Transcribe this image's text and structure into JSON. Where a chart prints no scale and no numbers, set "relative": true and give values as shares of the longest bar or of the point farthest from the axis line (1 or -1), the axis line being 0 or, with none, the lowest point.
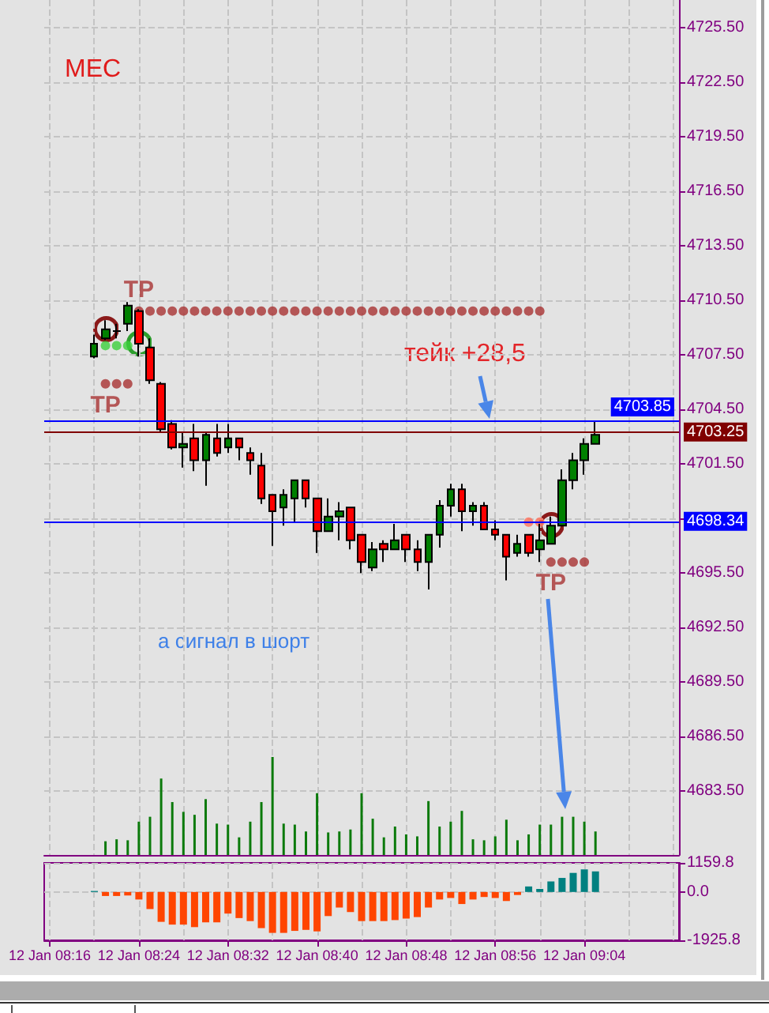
{
  "chart_data": [
    {
      "type": "candlestick",
      "title": "MEC",
      "categories": [
        null,
        null,
        null,
        null,
        null,
        null,
        null,
        null,
        null,
        null,
        null,
        null,
        null,
        null,
        null,
        null,
        null,
        null,
        null,
        null,
        null,
        null,
        null,
        null,
        null,
        null,
        null,
        null,
        null,
        null,
        null,
        null,
        null,
        null,
        null,
        null,
        null,
        null,
        null,
        null,
        null,
        null,
        null,
        null,
        null,
        null,
        null,
        null,
        null,
        null,
        null,
        null,
        null,
        null,
        null,
        null,
        null
      ],
      "ohlc": [
        null,
        null,
        null,
        null,
        [
          4707.4,
          4708.6,
          4707.3,
          4708.1
        ],
        [
          4708.4,
          4709.4,
          4708.3,
          4708.9
        ],
        [
          4708.8,
          4709.2,
          4708.4,
          4708.8
        ],
        [
          4709.2,
          4710.4,
          4708.8,
          4710.2
        ],
        [
          4709.9,
          4710.0,
          4707.4,
          4708.1
        ],
        [
          4707.9,
          4708.4,
          4705.9,
          4706.1
        ],
        [
          4705.9,
          4706.0,
          4703.2,
          4703.4
        ],
        [
          4703.7,
          4703.9,
          4702.3,
          4702.4
        ],
        [
          4702.4,
          4703.2,
          4701.3,
          4702.6
        ],
        [
          4702.9,
          4703.7,
          4701.1,
          4701.7
        ],
        [
          4701.7,
          4703.2,
          4700.3,
          4703.1
        ],
        [
          4702.9,
          4703.7,
          4701.9,
          4702.1
        ],
        [
          4702.4,
          4703.7,
          4702.1,
          4702.9
        ],
        [
          4702.9,
          4702.9,
          4701.7,
          4702.4
        ],
        [
          4702.1,
          4702.4,
          4700.9,
          4701.7
        ],
        [
          4701.4,
          4702.1,
          4699.3,
          4699.6
        ],
        [
          4699.8,
          4699.8,
          4697.0,
          4698.9
        ],
        [
          4699.1,
          4700.1,
          4698.1,
          4699.8
        ],
        [
          4699.6,
          4700.6,
          4698.3,
          4700.6
        ],
        [
          4700.6,
          4700.6,
          4699.1,
          4699.6
        ],
        [
          4699.6,
          4699.6,
          4696.6,
          4697.8
        ],
        [
          4697.8,
          4699.6,
          4697.8,
          4698.6
        ],
        [
          4698.6,
          4699.4,
          4697.3,
          4698.9
        ],
        [
          4699.1,
          4699.1,
          4696.8,
          4697.3
        ],
        [
          4697.6,
          4697.6,
          4695.5,
          4696.1
        ],
        [
          4695.8,
          4697.2,
          4695.6,
          4696.8
        ],
        [
          4697.1,
          4697.3,
          4696.1,
          4696.8
        ],
        [
          4696.8,
          4698.2,
          4696.8,
          4697.3
        ],
        [
          4697.6,
          4697.6,
          4696.1,
          4696.8
        ],
        [
          4696.8,
          4697.3,
          4695.6,
          4696.1
        ],
        [
          4696.1,
          4697.6,
          4694.6,
          4697.6
        ],
        [
          4697.6,
          4699.5,
          4696.9,
          4699.2
        ],
        [
          4699.2,
          4700.4,
          4698.6,
          4700.1
        ],
        [
          4700.1,
          4700.4,
          4697.8,
          4698.9
        ],
        [
          4698.9,
          4699.4,
          4698.1,
          4699.2
        ],
        [
          4699.2,
          4699.4,
          4697.9,
          4697.9
        ],
        [
          4697.9,
          4698.4,
          4697.3,
          4697.6
        ],
        [
          4697.6,
          4697.6,
          4695.1,
          4696.4
        ],
        [
          4696.6,
          4697.6,
          4696.4,
          4697.1
        ],
        [
          4697.6,
          4697.6,
          4696.4,
          4696.6
        ],
        [
          4696.8,
          4698.2,
          4696.1,
          4697.3
        ],
        [
          4697.1,
          4698.6,
          4697.1,
          4698.1
        ],
        [
          4698.1,
          4701.2,
          4698.1,
          4700.6
        ],
        [
          4700.6,
          4702.1,
          4700.1,
          4701.7
        ],
        [
          4701.7,
          4702.9,
          4700.9,
          4702.6
        ],
        [
          4702.6,
          4703.8,
          4702.6,
          4703.1
        ],
        null,
        null,
        null,
        null,
        null,
        null,
        null
      ],
      "series": [
        {
          "type": "scatter",
          "name": "TP",
          "color": "#a83232",
          "values": [
            null,
            null,
            null,
            null,
            null,
            null,
            null,
            null,
            4709.9,
            4709.9,
            4709.9,
            4709.9,
            4709.9,
            4709.9,
            4709.9,
            4709.9,
            4709.9,
            4709.9,
            4709.9,
            4709.9,
            4709.9,
            4709.9,
            4709.9,
            4709.9,
            4709.9,
            4709.9,
            4709.9,
            4709.9,
            4709.9,
            4709.9,
            4709.9,
            4709.9,
            4709.9,
            4709.9,
            4709.9,
            4709.9,
            4709.9,
            4709.9,
            4709.9,
            4709.9,
            4709.9,
            4709.9,
            4709.9,
            4709.9,
            4709.9,
            null,
            null,
            null,
            null,
            null,
            null,
            null,
            null,
            null,
            null,
            null,
            null
          ]
        },
        {
          "type": "scatter",
          "color": "#3ccf3c",
          "values": [
            null,
            null,
            null,
            null,
            null,
            4708.0,
            4708.0,
            4708.0,
            null,
            null,
            null,
            null,
            null,
            null,
            null,
            null,
            null,
            null,
            null,
            null,
            null,
            null,
            null,
            null,
            null,
            null,
            null,
            null,
            null,
            null,
            null,
            null,
            null,
            null,
            null,
            null,
            null,
            null,
            null,
            null,
            null,
            null,
            null,
            null,
            null,
            null,
            null,
            null,
            null,
            null,
            null,
            null,
            null,
            null,
            null,
            null,
            null
          ]
        },
        {
          "type": "scatter",
          "name": "TP",
          "color": "#a83232",
          "values": [
            null,
            null,
            null,
            null,
            null,
            4705.9,
            4705.9,
            4705.9,
            null,
            null,
            null,
            null,
            null,
            null,
            null,
            null,
            null,
            null,
            null,
            null,
            null,
            null,
            null,
            null,
            null,
            null,
            null,
            null,
            null,
            null,
            null,
            null,
            null,
            null,
            null,
            null,
            null,
            null,
            null,
            null,
            null,
            null,
            null,
            null,
            null,
            null,
            null,
            null,
            null,
            null,
            null,
            null,
            null,
            null,
            null,
            null,
            null
          ]
        },
        {
          "type": "scatter",
          "color": "#ff6f5a",
          "values": [
            null,
            null,
            null,
            null,
            null,
            null,
            null,
            null,
            null,
            null,
            null,
            null,
            null,
            null,
            null,
            null,
            null,
            null,
            null,
            null,
            null,
            null,
            null,
            null,
            null,
            null,
            null,
            null,
            null,
            null,
            null,
            null,
            null,
            null,
            null,
            null,
            null,
            null,
            null,
            null,
            null,
            null,
            null,
            4698.3,
            4698.3,
            null,
            null,
            null,
            null,
            null,
            null,
            null,
            null,
            null,
            null,
            null,
            null
          ]
        },
        {
          "type": "scatter",
          "name": "TP",
          "color": "#a83232",
          "values": [
            null,
            null,
            null,
            null,
            null,
            null,
            null,
            null,
            null,
            null,
            null,
            null,
            null,
            null,
            null,
            null,
            null,
            null,
            null,
            null,
            null,
            null,
            null,
            null,
            null,
            null,
            null,
            null,
            null,
            null,
            null,
            null,
            null,
            null,
            null,
            null,
            null,
            null,
            null,
            null,
            null,
            null,
            null,
            null,
            null,
            4696.1,
            4696.1,
            4696.1,
            4696.1,
            null,
            null,
            null,
            null,
            null,
            null,
            null,
            null
          ]
        }
      ],
      "ylim": [
        4680,
        4727
      ],
      "yticks": [
        {
          "value": 4683.5,
          "label": "4683.50"
        },
        {
          "value": 4686.5,
          "label": "4686.50"
        },
        {
          "value": 4689.5,
          "label": "4689.50"
        },
        {
          "value": 4692.5,
          "label": "4692.50"
        },
        {
          "value": 4695.5,
          "label": "4695.50"
        },
        {
          "value": 4698.5,
          "label": null
        },
        {
          "value": 4701.5,
          "label": "4701.50"
        },
        {
          "value": 4704.5,
          "label": "4704.50"
        },
        {
          "value": 4707.5,
          "label": "4707.50"
        },
        {
          "value": 4710.5,
          "label": "4710.50"
        },
        {
          "value": 4713.5,
          "label": "4713.50"
        },
        {
          "value": 4716.5,
          "label": "4716.50"
        },
        {
          "value": 4719.5,
          "label": "4719.50"
        },
        {
          "value": 4722.5,
          "label": "4722.50"
        },
        {
          "value": 4725.5,
          "label": "4725.50"
        }
      ],
      "ref_lines": [
        {
          "axis": "y",
          "value": 4703.85,
          "label": "4703.85",
          "color": "#0000ff"
        },
        {
          "axis": "y",
          "value": 4703.25,
          "label": "4703.25",
          "color": "#800000"
        },
        {
          "axis": "y",
          "value": 4698.34,
          "label": "4698.34",
          "color": "#0000ff"
        }
      ],
      "annotations": [
        "тейк +28,5",
        "а сигнал в шорт"
      ],
      "grid": true,
      "marker": "circle",
      "tick_labels": "y"
    },
    {
      "type": "bar",
      "relative": true,
      "categories": [
        null,
        null,
        null,
        null,
        null,
        null,
        null,
        null,
        null,
        null,
        null,
        null,
        null,
        null,
        null,
        null,
        null,
        null,
        null,
        null,
        null,
        null,
        null,
        null,
        null,
        null,
        null,
        null,
        null,
        null,
        null,
        null,
        null,
        null,
        null,
        null,
        null,
        null,
        null,
        null,
        null,
        null,
        null,
        null,
        null,
        null,
        null,
        null,
        null,
        null,
        null,
        null,
        null,
        null,
        null,
        null,
        null
      ],
      "values": [
        null,
        null,
        null,
        null,
        null,
        0.14,
        0.16,
        0.15,
        0.34,
        0.39,
        0.78,
        0.54,
        0.44,
        0.41,
        0.57,
        0.32,
        0.31,
        0.18,
        0.34,
        0.54,
        1,
        0.32,
        0.31,
        0.24,
        0.63,
        0.23,
        0.24,
        0.26,
        0.63,
        0.37,
        0.18,
        0.29,
        0.21,
        0.19,
        0.55,
        0.29,
        0.34,
        0.45,
        0.16,
        0.15,
        0.19,
        0.36,
        0.15,
        0.21,
        0.31,
        0.31,
        0.39,
        0.39,
        0.34,
        0.24,
        null,
        null,
        null,
        null,
        null,
        null,
        null
      ],
      "color": "#0b7a0b",
      "tick_labels": false
    },
    {
      "type": "bar",
      "categories": [
        "12 Jan 08:16",
        null,
        null,
        null,
        null,
        null,
        null,
        null,
        "12 Jan 08:24",
        null,
        null,
        null,
        null,
        null,
        null,
        null,
        "12 Jan 08:32",
        null,
        null,
        null,
        null,
        null,
        null,
        null,
        "12 Jan 08:40",
        null,
        null,
        null,
        null,
        null,
        null,
        null,
        "12 Jan 08:48",
        null,
        null,
        null,
        null,
        null,
        null,
        null,
        "12 Jan 08:56",
        null,
        null,
        null,
        null,
        null,
        null,
        null,
        "12 Jan 09:04",
        null,
        null,
        null,
        null,
        null,
        null,
        null,
        null
      ],
      "values": [
        null,
        null,
        null,
        null,
        40,
        -160,
        -160,
        -140,
        -300,
        -680,
        -1190,
        -1300,
        -1300,
        -1400,
        -1210,
        -1210,
        -860,
        -1040,
        -1160,
        -1440,
        -1630,
        -1630,
        -1550,
        -1510,
        -1570,
        -960,
        -620,
        -800,
        -1160,
        -1160,
        -1160,
        -1120,
        -1060,
        -1000,
        -620,
        -300,
        -240,
        -480,
        -300,
        -200,
        -240,
        -360,
        -120,
        220,
        120,
        420,
        560,
        760,
        900,
        820,
        null,
        null,
        null,
        null,
        null,
        null,
        null
      ],
      "colors": [
        null,
        null,
        null,
        null,
        "#008080",
        "#ff4500",
        "#ff4500",
        "#ff4500",
        "#ff4500",
        "#ff4500",
        "#ff4500",
        "#ff4500",
        "#ff4500",
        "#ff4500",
        "#ff4500",
        "#ff4500",
        "#ff4500",
        "#ff4500",
        "#ff4500",
        "#ff4500",
        "#ff4500",
        "#ff4500",
        "#ff4500",
        "#ff4500",
        "#ff4500",
        "#ff4500",
        "#ff4500",
        "#ff4500",
        "#ff4500",
        "#ff4500",
        "#ff4500",
        "#ff4500",
        "#ff4500",
        "#ff4500",
        "#ff4500",
        "#ff4500",
        "#ff4500",
        "#ff4500",
        "#ff4500",
        "#ff4500",
        "#ff4500",
        "#ff4500",
        "#ff4500",
        "#008080",
        "#008080",
        "#008080",
        "#008080",
        "#008080",
        "#008080",
        "#008080",
        null,
        null,
        null,
        null,
        null,
        null,
        null
      ],
      "ylim": [
        -1925.8,
        1159.8
      ],
      "yticks": [
        1159.8,
        {
          "value": 0,
          "label": "0.0"
        },
        -1925.8
      ],
      "grid": true
    }
  ]
}
